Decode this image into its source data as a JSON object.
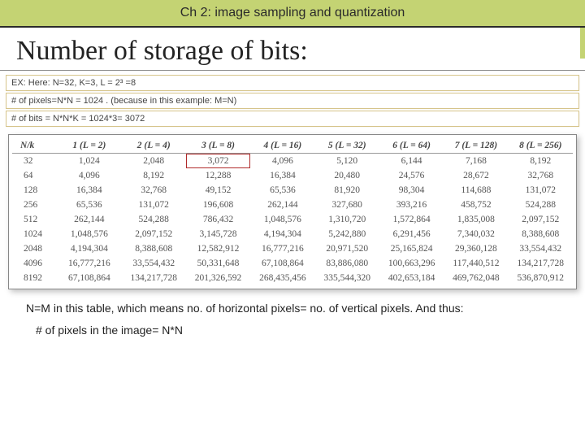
{
  "header": {
    "title": "Ch 2: image sampling and quantization"
  },
  "main_title": "Number of storage of bits:",
  "info_rows": {
    "row1": "EX: Here: N=32,      K=3,      L = 2³ =8",
    "row2": "# of pixels=N*N = 1024 .  (because in this example: M=N)",
    "row3": "# of bits = N*N*K = 1024*3= 3072"
  },
  "table": {
    "columns": [
      "N/k",
      "1 (L = 2)",
      "2 (L = 4)",
      "3 (L = 8)",
      "4 (L = 16)",
      "5 (L = 32)",
      "6 (L = 64)",
      "7 (L = 128)",
      "8 (L = 256)"
    ],
    "rows": [
      [
        "32",
        "1,024",
        "2,048",
        "3,072",
        "4,096",
        "5,120",
        "6,144",
        "7,168",
        "8,192"
      ],
      [
        "64",
        "4,096",
        "8,192",
        "12,288",
        "16,384",
        "20,480",
        "24,576",
        "28,672",
        "32,768"
      ],
      [
        "128",
        "16,384",
        "32,768",
        "49,152",
        "65,536",
        "81,920",
        "98,304",
        "114,688",
        "131,072"
      ],
      [
        "256",
        "65,536",
        "131,072",
        "196,608",
        "262,144",
        "327,680",
        "393,216",
        "458,752",
        "524,288"
      ],
      [
        "512",
        "262,144",
        "524,288",
        "786,432",
        "1,048,576",
        "1,310,720",
        "1,572,864",
        "1,835,008",
        "2,097,152"
      ],
      [
        "1024",
        "1,048,576",
        "2,097,152",
        "3,145,728",
        "4,194,304",
        "5,242,880",
        "6,291,456",
        "7,340,032",
        "8,388,608"
      ],
      [
        "2048",
        "4,194,304",
        "8,388,608",
        "12,582,912",
        "16,777,216",
        "20,971,520",
        "25,165,824",
        "29,360,128",
        "33,554,432"
      ],
      [
        "4096",
        "16,777,216",
        "33,554,432",
        "50,331,648",
        "67,108,864",
        "83,886,080",
        "100,663,296",
        "117,440,512",
        "134,217,728"
      ],
      [
        "8192",
        "67,108,864",
        "134,217,728",
        "201,326,592",
        "268,435,456",
        "335,544,320",
        "402,653,184",
        "469,762,048",
        "536,870,912"
      ]
    ],
    "highlight": {
      "row": 0,
      "col": 3
    },
    "col_widths_pct": [
      8,
      11.5,
      11.5,
      11.5,
      11.5,
      11.5,
      11.5,
      11.5,
      11.5
    ],
    "border_color": "#888888",
    "header_border_color": "#999999",
    "text_color": "#555555",
    "highlight_border": "#b02a2a"
  },
  "footer": {
    "line1": "N=M in this table, which means no. of horizontal pixels= no. of vertical pixels. And thus:",
    "line2": "# of pixels in the image= N*N"
  },
  "colors": {
    "accent": "#c4d373",
    "header_rule": "#2a2a2a",
    "info_border": "#d6c48a"
  },
  "arrow": {
    "color": "#3a3a3a",
    "width": 1.8
  }
}
